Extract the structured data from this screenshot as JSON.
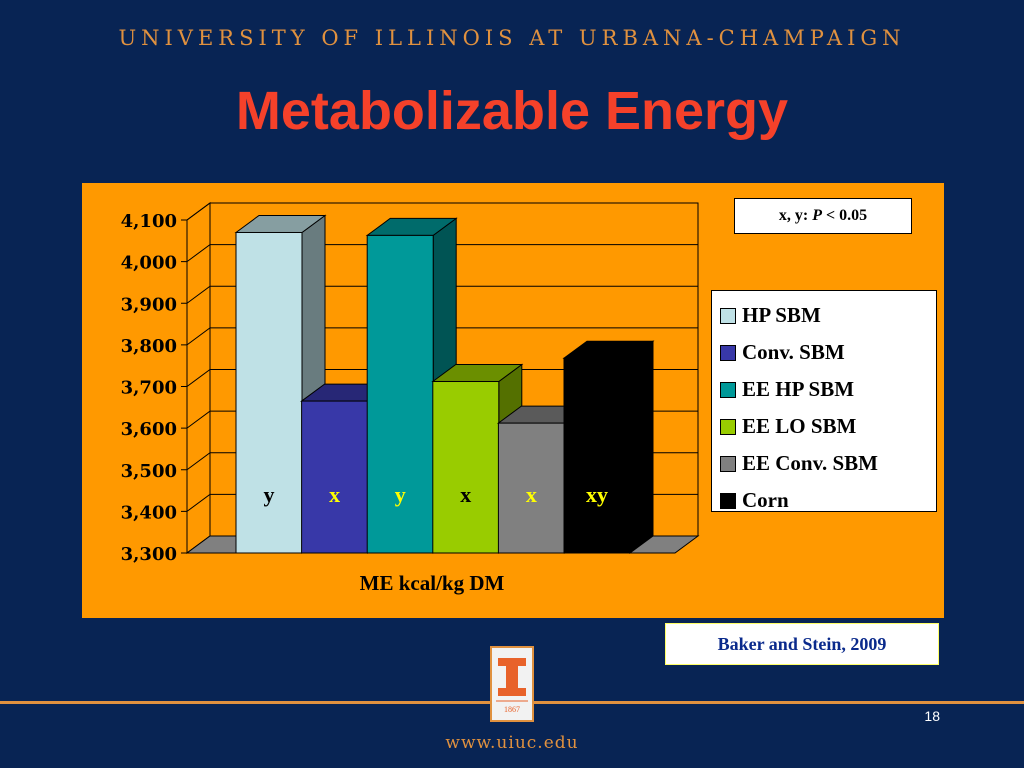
{
  "header": {
    "university": "UNIVERSITY OF ILLINOIS AT URBANA-CHAMPAIGN"
  },
  "slide": {
    "title": "Metabolizable Energy",
    "citation": "Baker and Stein, 2009",
    "page_number": "18",
    "footer_url": "www.uiuc.edu",
    "logo_year": "1867"
  },
  "note": {
    "prefix": "x, y: ",
    "italic": "P",
    "suffix": " < 0.05"
  },
  "chart_data": {
    "type": "bar",
    "xlabel": "ME kcal/kg DM",
    "ylim": [
      3300,
      4100
    ],
    "yticks": [
      3300,
      3400,
      3500,
      3600,
      3700,
      3800,
      3900,
      4000,
      4100
    ],
    "ytick_labels": [
      "3,300",
      "3,400",
      "3,500",
      "3,600",
      "3,700",
      "3,800",
      "3,900",
      "4,000",
      "4,100"
    ],
    "grid": true,
    "legend_position": "right",
    "series": [
      {
        "name": "HP SBM",
        "values": [
          4070
        ],
        "color": "#bfe1e6",
        "label": "y",
        "label_color": "#000000"
      },
      {
        "name": "Conv. SBM",
        "values": [
          3665
        ],
        "color": "#3838a8",
        "label": "x",
        "label_color": "#ffff00"
      },
      {
        "name": "EE HP SBM",
        "values": [
          4063
        ],
        "color": "#009999",
        "label": "y",
        "label_color": "#ffff00"
      },
      {
        "name": "EE LO SBM",
        "values": [
          3712
        ],
        "color": "#99cc00",
        "label": "x",
        "label_color": "#000000"
      },
      {
        "name": "EE Conv. SBM",
        "values": [
          3612
        ],
        "color": "#808080",
        "label": "x",
        "label_color": "#ffff00"
      },
      {
        "name": "Corn",
        "values": [
          3768
        ],
        "color": "#000000",
        "label": "xy",
        "label_color": "#ffff00"
      }
    ]
  }
}
